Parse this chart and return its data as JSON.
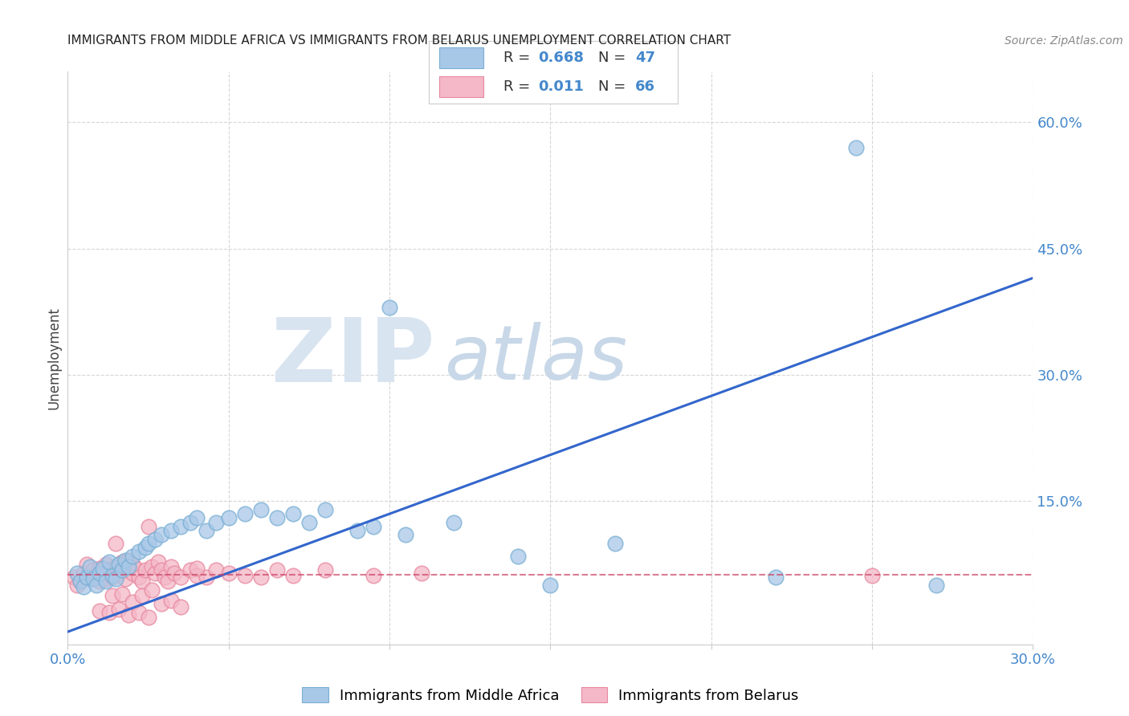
{
  "title": "IMMIGRANTS FROM MIDDLE AFRICA VS IMMIGRANTS FROM BELARUS UNEMPLOYMENT CORRELATION CHART",
  "source": "Source: ZipAtlas.com",
  "ylabel": "Unemployment",
  "xlim": [
    0.0,
    0.3
  ],
  "ylim": [
    -0.02,
    0.66
  ],
  "x_ticks": [
    0.0,
    0.05,
    0.1,
    0.15,
    0.2,
    0.25,
    0.3
  ],
  "x_tick_labels": [
    "0.0%",
    "",
    "",
    "",
    "",
    "",
    "30.0%"
  ],
  "y_ticks_right": [
    0.15,
    0.3,
    0.45,
    0.6
  ],
  "y_tick_labels_right": [
    "15.0%",
    "30.0%",
    "45.0%",
    "60.0%"
  ],
  "blue_R": 0.668,
  "blue_N": 47,
  "pink_R": 0.011,
  "pink_N": 66,
  "blue_color": "#a8c8e8",
  "blue_edge_color": "#7aafd4",
  "pink_color": "#f4b8c8",
  "pink_edge_color": "#e88aa0",
  "blue_line_color": "#3366cc",
  "pink_line_color": "#cc4466",
  "grid_color": "#cccccc",
  "watermark_zip_color": "#d8e4f0",
  "watermark_atlas_color": "#c8d8e8",
  "background": "#ffffff",
  "blue_scatter_x": [
    0.003,
    0.004,
    0.005,
    0.006,
    0.007,
    0.008,
    0.009,
    0.01,
    0.011,
    0.012,
    0.013,
    0.014,
    0.015,
    0.016,
    0.017,
    0.018,
    0.019,
    0.02,
    0.022,
    0.024,
    0.025,
    0.027,
    0.029,
    0.032,
    0.035,
    0.038,
    0.04,
    0.043,
    0.046,
    0.05,
    0.055,
    0.06,
    0.065,
    0.07,
    0.075,
    0.08,
    0.09,
    0.095,
    0.1,
    0.105,
    0.12,
    0.14,
    0.15,
    0.17,
    0.22,
    0.245,
    0.27
  ],
  "blue_scatter_y": [
    0.065,
    0.055,
    0.048,
    0.06,
    0.072,
    0.058,
    0.05,
    0.065,
    0.07,
    0.055,
    0.078,
    0.062,
    0.058,
    0.075,
    0.068,
    0.08,
    0.072,
    0.085,
    0.09,
    0.095,
    0.1,
    0.105,
    0.11,
    0.115,
    0.12,
    0.125,
    0.13,
    0.115,
    0.125,
    0.13,
    0.135,
    0.14,
    0.13,
    0.135,
    0.125,
    0.14,
    0.115,
    0.12,
    0.38,
    0.11,
    0.125,
    0.085,
    0.05,
    0.1,
    0.06,
    0.57,
    0.05
  ],
  "pink_scatter_x": [
    0.002,
    0.003,
    0.004,
    0.005,
    0.006,
    0.007,
    0.008,
    0.009,
    0.01,
    0.01,
    0.011,
    0.012,
    0.012,
    0.013,
    0.014,
    0.015,
    0.015,
    0.016,
    0.017,
    0.018,
    0.018,
    0.019,
    0.02,
    0.02,
    0.021,
    0.022,
    0.023,
    0.024,
    0.025,
    0.026,
    0.027,
    0.028,
    0.029,
    0.03,
    0.031,
    0.032,
    0.033,
    0.035,
    0.038,
    0.04,
    0.043,
    0.046,
    0.05,
    0.055,
    0.06,
    0.065,
    0.07,
    0.08,
    0.095,
    0.11,
    0.014,
    0.017,
    0.02,
    0.023,
    0.026,
    0.029,
    0.032,
    0.035,
    0.01,
    0.013,
    0.016,
    0.019,
    0.022,
    0.025,
    0.04,
    0.25
  ],
  "pink_scatter_y": [
    0.06,
    0.05,
    0.055,
    0.065,
    0.075,
    0.058,
    0.068,
    0.062,
    0.07,
    0.055,
    0.065,
    0.075,
    0.058,
    0.068,
    0.06,
    0.1,
    0.072,
    0.065,
    0.078,
    0.068,
    0.058,
    0.08,
    0.065,
    0.075,
    0.07,
    0.06,
    0.055,
    0.068,
    0.12,
    0.072,
    0.065,
    0.078,
    0.068,
    0.06,
    0.055,
    0.072,
    0.065,
    0.06,
    0.068,
    0.062,
    0.06,
    0.068,
    0.065,
    0.062,
    0.06,
    0.068,
    0.062,
    0.068,
    0.062,
    0.065,
    0.038,
    0.04,
    0.03,
    0.038,
    0.045,
    0.028,
    0.032,
    0.025,
    0.02,
    0.018,
    0.022,
    0.015,
    0.018,
    0.012,
    0.07,
    0.062
  ],
  "blue_line_x0": 0.0,
  "blue_line_x1": 0.3,
  "blue_line_y0": -0.005,
  "blue_line_y1": 0.415,
  "pink_line_x0": 0.0,
  "pink_line_x1": 0.3,
  "pink_line_y0": 0.063,
  "pink_line_y1": 0.063,
  "legend_label_blue": "Immigrants from Middle Africa",
  "legend_label_pink": "Immigrants from Belarus"
}
